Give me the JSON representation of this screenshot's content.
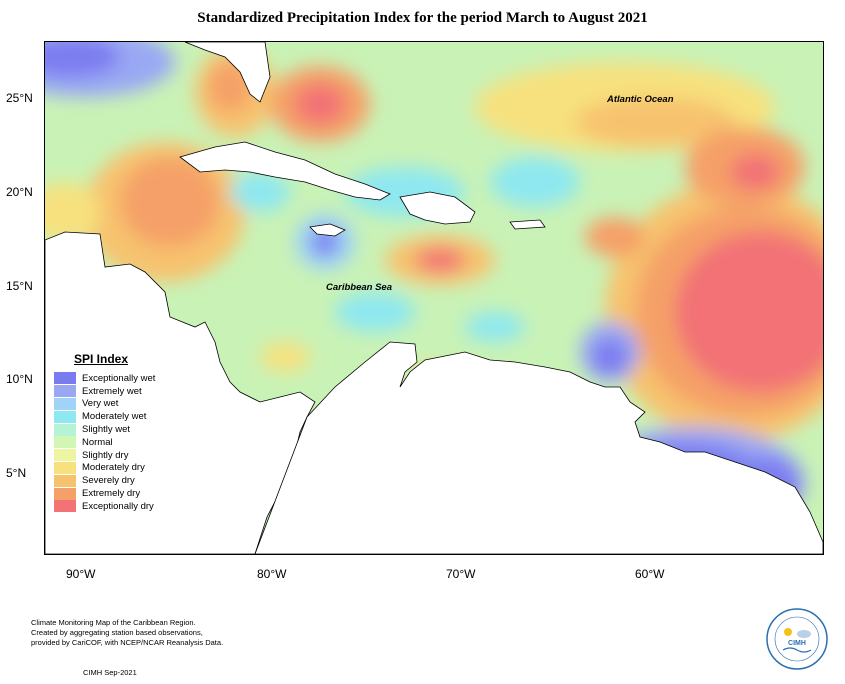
{
  "title": "Standardized Precipitation Index for the period March to August 2021",
  "map": {
    "ocean_labels": {
      "atlantic": "Atlantic Ocean",
      "caribbean": "Caribbean Sea"
    },
    "lat_labels": [
      "25°N",
      "20°N",
      "15°N",
      "10°N",
      "5°N"
    ],
    "lon_labels": [
      "90°W",
      "80°W",
      "70°W",
      "60°W"
    ]
  },
  "legend": {
    "title": "SPI Index",
    "items": [
      {
        "label": "Exceptionally wet",
        "color": "#7b7bf0"
      },
      {
        "label": "Extremely wet",
        "color": "#9aa8f4"
      },
      {
        "label": "Very wet",
        "color": "#9fd3f7"
      },
      {
        "label": "Moderately wet",
        "color": "#8ee8f0"
      },
      {
        "label": "Slightly wet",
        "color": "#b5f2d6"
      },
      {
        "label": "Normal",
        "color": "#d2f6b4"
      },
      {
        "label": "Slightly dry",
        "color": "#eef5a0"
      },
      {
        "label": "Moderately dry",
        "color": "#f7e17e"
      },
      {
        "label": "Severely dry",
        "color": "#f7c26e"
      },
      {
        "label": "Extremely dry",
        "color": "#f5a067"
      },
      {
        "label": "Exceptionally dry",
        "color": "#f27276"
      }
    ]
  },
  "credits": {
    "lines": [
      "Climate Monitoring Map of the Caribbean Region.",
      "Created by aggregating station based observations,",
      "provided by CariCOF, with NCEP/NCAR Reanalysis Data."
    ],
    "date": "CIMH Sep-2021"
  },
  "logo": {
    "text": "CIMH"
  }
}
